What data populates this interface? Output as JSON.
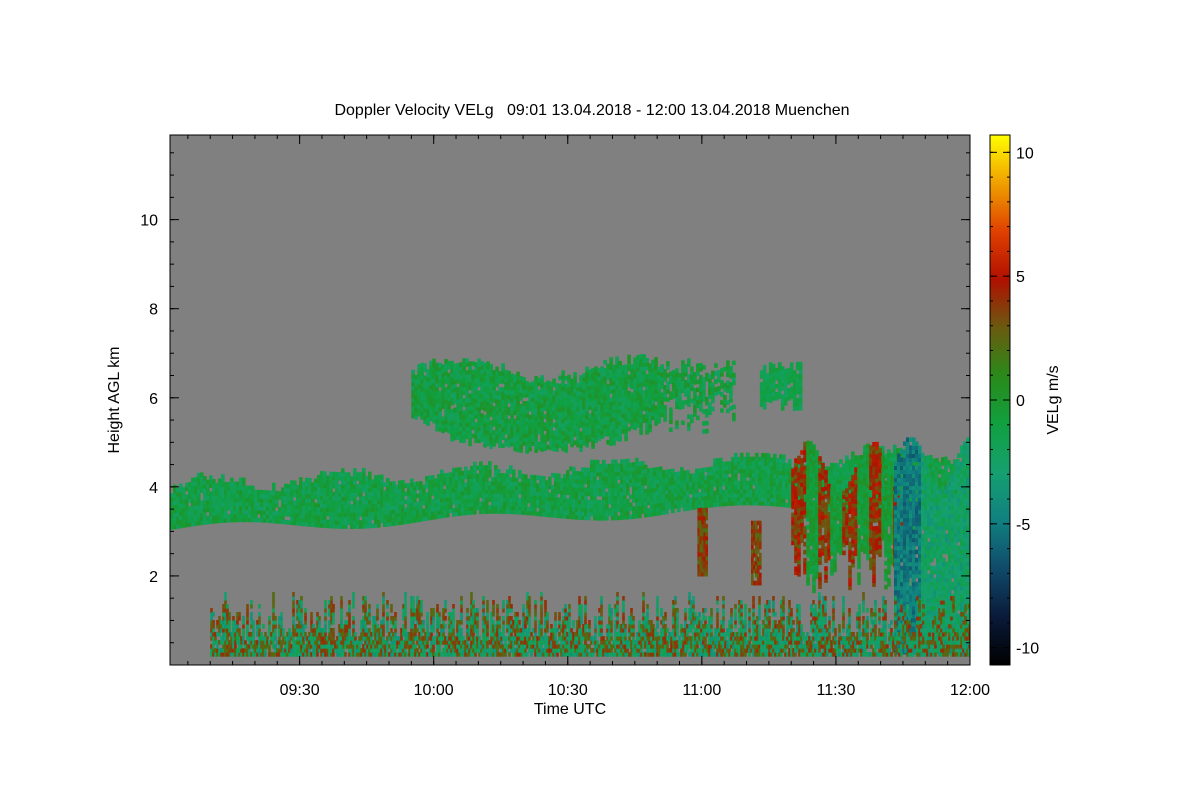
{
  "chart_data": {
    "type": "heatmap",
    "title": "Doppler Velocity VELg   09:01 13.04.2018 - 12:00 13.04.2018 Muenchen",
    "xlabel": "Time UTC",
    "ylabel": "Height AGL km",
    "x_range_utc": [
      "09:01",
      "12:00"
    ],
    "x_ticks": [
      {
        "value": "09:30",
        "label": "09:30"
      },
      {
        "value": "10:00",
        "label": "10:00"
      },
      {
        "value": "10:30",
        "label": "10:30"
      },
      {
        "value": "11:00",
        "label": "11:00"
      },
      {
        "value": "11:30",
        "label": "11:30"
      },
      {
        "value": "12:00",
        "label": "12:00"
      }
    ],
    "ylim": [
      0,
      11.9
    ],
    "y_ticks": [
      2,
      4,
      6,
      8,
      10
    ],
    "colorbar": {
      "label": "VELg m/s",
      "range": [
        -10.7,
        10.7
      ],
      "ticks": [
        10,
        5,
        0,
        -5,
        -10
      ],
      "colors": [
        "#ffff00",
        "#f0a000",
        "#e04000",
        "#b01000",
        "#6a5a10",
        "#2a8a1a",
        "#10a040",
        "#15a070",
        "#108080",
        "#104a6a",
        "#0a1a3a",
        "#000000"
      ]
    },
    "background_color": "#808080",
    "features": [
      {
        "name": "mid-level cloud layer",
        "time_start": "09:01",
        "time_end": "12:00",
        "height_km": [
          3.0,
          4.8
        ],
        "velocity": "about 0 to -2 m/s"
      },
      {
        "name": "upper cloud",
        "time_start": "09:55",
        "time_end": "11:22",
        "height_km": [
          4.8,
          7.2
        ],
        "velocity": "about 0 to -2 m/s"
      },
      {
        "name": "boundary layer returns",
        "time_start": "09:10",
        "time_end": "12:00",
        "height_km": [
          0.2,
          1.8
        ],
        "velocity": "-4 to +4 m/s"
      },
      {
        "name": "convective fall streaks",
        "time_start": "11:20",
        "time_end": "11:47",
        "height_km": [
          1.5,
          5.3
        ],
        "velocity": "+2 to +6 m/s"
      },
      {
        "name": "downdraft region",
        "time_start": "11:43",
        "time_end": "12:00",
        "height_km": [
          0.2,
          5.3
        ],
        "velocity": "-3 to -6 m/s"
      }
    ]
  }
}
